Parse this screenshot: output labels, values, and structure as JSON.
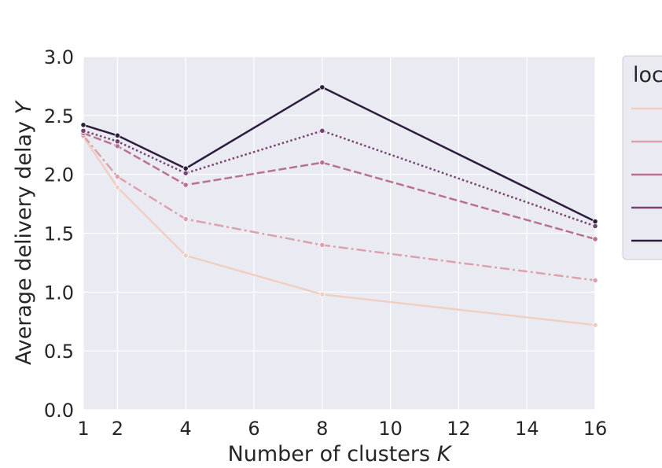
{
  "chart_data": {
    "type": "line",
    "title": "",
    "xlabel": "Number of clusters",
    "xlabel_var": "K",
    "ylabel": "Average delivery delay",
    "ylabel_var": "Y",
    "x": [
      1,
      2,
      4,
      8,
      16
    ],
    "xticks": [
      "1",
      "2",
      "4",
      "6",
      "8",
      "10",
      "12",
      "14",
      "16"
    ],
    "xlim": [
      1,
      16
    ],
    "yticks": [
      "0.0",
      "0.5",
      "1.0",
      "1.5",
      "2.0",
      "2.5",
      "3.0"
    ],
    "ylim": [
      0,
      3
    ],
    "grid": true,
    "legend": {
      "title": "loc",
      "placement": "right, outside (clipped)"
    },
    "series": [
      {
        "values": [
          2.32,
          1.89,
          1.31,
          0.98,
          0.72
        ],
        "color": "#f0cfc3",
        "dash": "solid"
      },
      {
        "values": [
          2.33,
          1.98,
          1.62,
          1.4,
          1.1
        ],
        "color": "#dca1ad",
        "dash": "dashdot"
      },
      {
        "values": [
          2.35,
          2.24,
          1.91,
          2.1,
          1.45
        ],
        "color": "#b8728f",
        "dash": "dashed"
      },
      {
        "values": [
          2.37,
          2.28,
          2.01,
          2.37,
          1.56
        ],
        "color": "#774370",
        "dash": "dotted"
      },
      {
        "values": [
          2.42,
          2.33,
          2.05,
          2.74,
          1.6
        ],
        "color": "#2d1e3e",
        "dash": "solid"
      }
    ]
  }
}
